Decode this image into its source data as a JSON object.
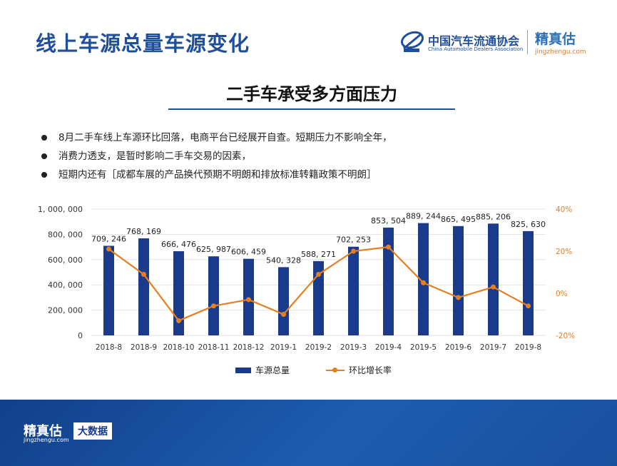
{
  "page": {
    "title": "线上车源总量车源变化",
    "subtitle": "二手车承受多方面压力",
    "logos": {
      "caada_zh": "中国汽车流通协会",
      "caada_en": "China Automobile Dealers Association",
      "jzg_zh": "精真估",
      "jzg_en": "jingzhengu.com"
    },
    "bullets": [
      "8月二手车线上车源环比回落，电商平台已经展开自查。短期压力不影响全年，",
      "消费力透支，是暂时影响二手车交易的因素，",
      "短期内还有［成都车展的产品换代预期不明朗和排放标准转籍政策不明朗］"
    ],
    "footer": {
      "brand_zh": "精真估",
      "brand_en": "jingzhengu.com",
      "tag": "大数据"
    }
  },
  "chart_data": {
    "type": "bar",
    "categories": [
      "2018-8",
      "2018-9",
      "2018-10",
      "2018-11",
      "2018-12",
      "2019-1",
      "2019-2",
      "2019-3",
      "2019-4",
      "2019-5",
      "2019-6",
      "2019-7",
      "2019-8"
    ],
    "series": [
      {
        "name": "车源总量",
        "type": "bar",
        "axis": "left",
        "color": "#1a3a8c",
        "values": [
          709246,
          768169,
          666476,
          625987,
          606459,
          540328,
          588271,
          702253,
          853504,
          889244,
          865495,
          885206,
          825630
        ],
        "labels": [
          "709, 246",
          "768, 169",
          "666, 476",
          "625, 987",
          "606, 459",
          "540, 328",
          "588, 271",
          "702, 253",
          "853, 504",
          "889, 244",
          "865, 495",
          "885, 206",
          "825, 630"
        ]
      },
      {
        "name": "环比增长率",
        "type": "line",
        "axis": "right",
        "color": "#e67e22",
        "values": [
          21,
          9,
          -13,
          -6,
          -3,
          -10,
          9,
          20,
          22,
          5,
          -2,
          3,
          -6
        ]
      }
    ],
    "y_left": {
      "range": [
        0,
        1000000
      ],
      "ticks": [
        0,
        200000,
        400000,
        600000,
        800000,
        1000000
      ],
      "tick_labels": [
        "0",
        "200, 000",
        "400, 000",
        "600, 000",
        "800, 000",
        "1, 000, 000"
      ]
    },
    "y_right": {
      "range": [
        -20,
        40
      ],
      "ticks": [
        -20,
        0,
        20,
        40
      ],
      "tick_labels": [
        "-20%",
        "0%",
        "20%",
        "40%"
      ]
    },
    "grid": true,
    "legend_position": "bottom"
  }
}
